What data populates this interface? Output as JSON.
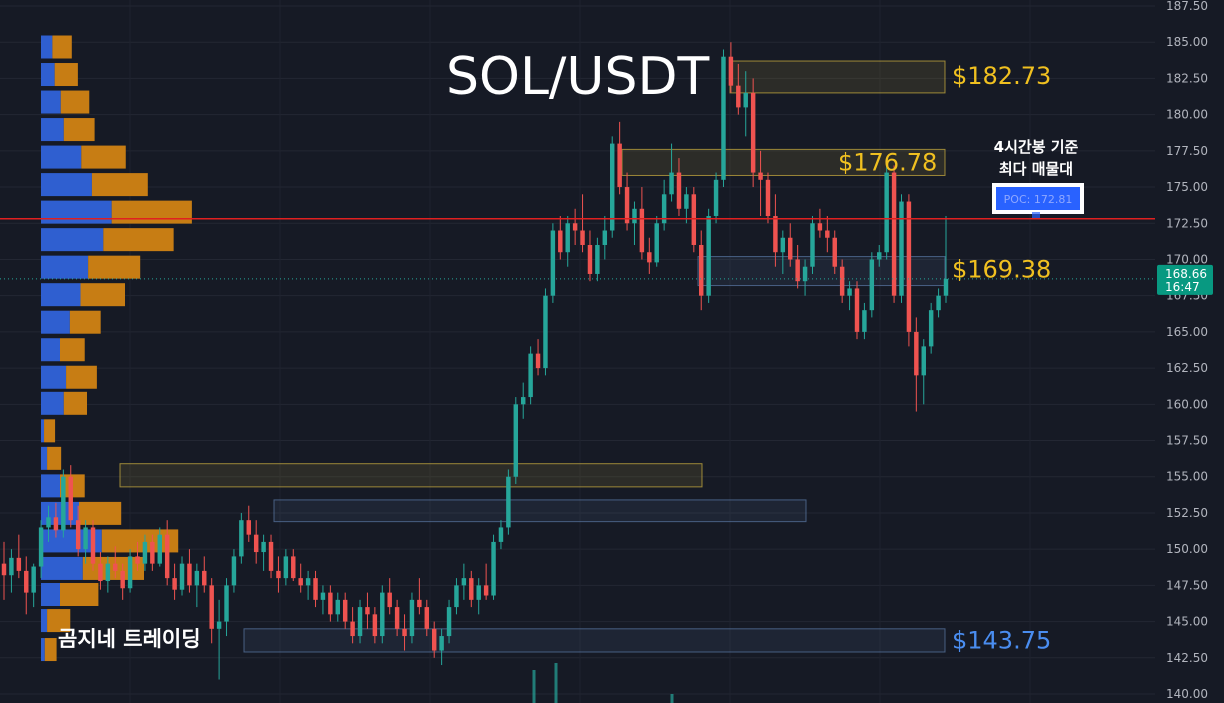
{
  "chart_data": {
    "type": "candlestick",
    "title": "SOL/USDT",
    "ylim": [
      140,
      187.5
    ],
    "y_ticks": [
      140,
      142.5,
      145,
      147.5,
      150,
      152.5,
      155,
      157.5,
      160,
      162.5,
      165,
      167.5,
      170,
      172.5,
      175,
      177.5,
      180,
      182.5,
      185,
      187.5
    ],
    "y_tick_labels": [
      "140.00",
      "142.50",
      "145.00",
      "147.50",
      "150.00",
      "152.50",
      "155.00",
      "157.50",
      "160.00",
      "162.50",
      "165.00",
      "167.50",
      "170.00",
      "172.50",
      "175.00",
      "177.50",
      "180.00",
      "182.50",
      "185.00",
      "187.50"
    ],
    "current_price": {
      "value": 168.66,
      "label": "168.66",
      "time": "16:47"
    },
    "poc": {
      "value": 172.81,
      "label": "POC: 172.81"
    },
    "price_levels": [
      {
        "value": 182.73,
        "label": "$182.73",
        "color": "#f0c020"
      },
      {
        "value": 176.78,
        "label": "$176.78",
        "color": "#f0c020"
      },
      {
        "value": 169.38,
        "label": "$169.38",
        "color": "#f0c020"
      },
      {
        "value": 143.75,
        "label": "$143.75",
        "color": "#4a8df0"
      }
    ],
    "annotation": [
      "4시간봉 기준",
      "최다 매물대"
    ],
    "brand": "곰지네 트레이딩",
    "volume_profile": [
      {
        "price": 143.0,
        "buy": 5,
        "sell": 5
      },
      {
        "price": 145.0,
        "buy": 8,
        "sell": 20
      },
      {
        "price": 146.8,
        "buy": 25,
        "sell": 40
      },
      {
        "price": 148.6,
        "buy": 55,
        "sell": 70
      },
      {
        "price": 150.5,
        "buy": 80,
        "sell": 90
      },
      {
        "price": 152.4,
        "buy": 50,
        "sell": 45
      },
      {
        "price": 154.3,
        "buy": 25,
        "sell": 22
      },
      {
        "price": 156.2,
        "buy": 8,
        "sell": 8
      },
      {
        "price": 158.1,
        "buy": 4,
        "sell": 4
      },
      {
        "price": 160.0,
        "buy": 30,
        "sell": 20
      },
      {
        "price": 161.8,
        "buy": 33,
        "sell": 30
      },
      {
        "price": 163.7,
        "buy": 25,
        "sell": 22
      },
      {
        "price": 165.6,
        "buy": 38,
        "sell": 30
      },
      {
        "price": 167.5,
        "buy": 52,
        "sell": 48
      },
      {
        "price": 169.4,
        "buy": 62,
        "sell": 58
      },
      {
        "price": 171.3,
        "buy": 82,
        "sell": 82
      },
      {
        "price": 173.2,
        "buy": 93,
        "sell": 95
      },
      {
        "price": 175.1,
        "buy": 67,
        "sell": 63
      },
      {
        "price": 177.0,
        "buy": 53,
        "sell": 48
      },
      {
        "price": 178.9,
        "buy": 30,
        "sell": 30
      },
      {
        "price": 180.8,
        "buy": 26,
        "sell": 27
      },
      {
        "price": 182.7,
        "buy": 18,
        "sell": 20
      },
      {
        "price": 184.6,
        "buy": 15,
        "sell": 15
      }
    ],
    "candles": [
      [
        149.0,
        150.5,
        146.5,
        148.2
      ],
      [
        148.2,
        150.0,
        147.0,
        149.4
      ],
      [
        149.4,
        151.0,
        148.0,
        148.5
      ],
      [
        148.5,
        149.5,
        145.5,
        147.0
      ],
      [
        147.0,
        149.0,
        146.0,
        148.8
      ],
      [
        148.8,
        152.0,
        148.0,
        151.5
      ],
      [
        151.5,
        153.0,
        150.5,
        152.2
      ],
      [
        152.2,
        153.2,
        150.8,
        151.3
      ],
      [
        151.3,
        155.5,
        150.8,
        155.0
      ],
      [
        155.0,
        155.8,
        151.5,
        152.0
      ],
      [
        152.0,
        153.0,
        149.5,
        150.0
      ],
      [
        150.0,
        152.0,
        149.0,
        151.5
      ],
      [
        151.5,
        152.0,
        148.5,
        149.0
      ],
      [
        149.0,
        149.8,
        147.2,
        147.8
      ],
      [
        147.8,
        149.5,
        147.0,
        149.0
      ],
      [
        149.0,
        150.2,
        148.0,
        148.5
      ],
      [
        148.5,
        149.0,
        146.5,
        147.3
      ],
      [
        147.3,
        150.0,
        147.0,
        149.5
      ],
      [
        149.5,
        150.5,
        148.5,
        149.0
      ],
      [
        149.0,
        151.0,
        148.5,
        150.5
      ],
      [
        150.5,
        151.0,
        148.5,
        149.0
      ],
      [
        149.0,
        151.5,
        148.8,
        151.0
      ],
      [
        151.0,
        152.0,
        147.5,
        148.0
      ],
      [
        148.0,
        149.0,
        146.5,
        147.2
      ],
      [
        147.2,
        149.5,
        146.8,
        149.0
      ],
      [
        149.0,
        150.0,
        147.0,
        147.5
      ],
      [
        147.5,
        149.0,
        146.0,
        148.5
      ],
      [
        148.5,
        149.5,
        147.0,
        147.5
      ],
      [
        147.5,
        148.0,
        143.5,
        144.5
      ],
      [
        144.5,
        146.5,
        141.0,
        145.0
      ],
      [
        145.0,
        148.0,
        144.0,
        147.5
      ],
      [
        147.5,
        150.0,
        147.0,
        149.5
      ],
      [
        149.5,
        152.5,
        149.0,
        152.0
      ],
      [
        152.0,
        153.0,
        150.5,
        151.0
      ],
      [
        151.0,
        152.0,
        149.0,
        149.8
      ],
      [
        149.8,
        151.0,
        148.5,
        150.5
      ],
      [
        150.5,
        151.0,
        148.0,
        148.5
      ],
      [
        148.5,
        149.5,
        147.0,
        148.0
      ],
      [
        148.0,
        150.0,
        147.5,
        149.5
      ],
      [
        149.5,
        150.0,
        147.8,
        148.0
      ],
      [
        148.0,
        149.0,
        147.0,
        147.5
      ],
      [
        147.5,
        148.5,
        146.5,
        148.0
      ],
      [
        148.0,
        148.5,
        146.0,
        146.5
      ],
      [
        146.5,
        147.5,
        145.5,
        147.0
      ],
      [
        147.0,
        147.5,
        145.0,
        145.5
      ],
      [
        145.5,
        147.0,
        145.0,
        146.5
      ],
      [
        146.5,
        147.0,
        144.5,
        145.0
      ],
      [
        145.0,
        146.0,
        143.5,
        144.0
      ],
      [
        144.0,
        146.5,
        143.5,
        146.0
      ],
      [
        146.0,
        147.0,
        144.5,
        145.5
      ],
      [
        145.5,
        146.0,
        143.5,
        144.0
      ],
      [
        144.0,
        147.5,
        143.5,
        147.0
      ],
      [
        147.0,
        148.0,
        145.5,
        146.0
      ],
      [
        146.0,
        146.5,
        144.0,
        144.5
      ],
      [
        144.5,
        145.5,
        143.0,
        144.0
      ],
      [
        144.0,
        147.0,
        143.5,
        146.5
      ],
      [
        146.5,
        148.0,
        145.5,
        146.0
      ],
      [
        146.0,
        146.5,
        144.0,
        144.5
      ],
      [
        144.5,
        145.0,
        142.5,
        143.0
      ],
      [
        143.0,
        144.5,
        142.0,
        144.0
      ],
      [
        144.0,
        146.5,
        143.5,
        146.0
      ],
      [
        146.0,
        148.0,
        145.5,
        147.5
      ],
      [
        147.5,
        149.0,
        146.5,
        148.0
      ],
      [
        148.0,
        148.5,
        146.0,
        146.5
      ],
      [
        146.5,
        148.0,
        145.5,
        147.5
      ],
      [
        147.5,
        149.0,
        146.5,
        146.8
      ],
      [
        146.8,
        151.0,
        146.5,
        150.5
      ],
      [
        150.5,
        152.0,
        150.0,
        151.5
      ],
      [
        151.5,
        155.5,
        151.0,
        155.0
      ],
      [
        155.0,
        160.5,
        154.5,
        160.0
      ],
      [
        160.0,
        161.5,
        159.0,
        160.5
      ],
      [
        160.5,
        164.0,
        160.0,
        163.5
      ],
      [
        163.5,
        164.5,
        162.0,
        162.5
      ],
      [
        162.5,
        168.0,
        162.0,
        167.5
      ],
      [
        167.5,
        172.5,
        167.0,
        172.0
      ],
      [
        172.0,
        173.0,
        170.0,
        170.5
      ],
      [
        170.5,
        173.0,
        169.5,
        172.5
      ],
      [
        172.5,
        173.5,
        171.0,
        172.0
      ],
      [
        172.0,
        174.5,
        170.5,
        171.0
      ],
      [
        171.0,
        172.0,
        168.5,
        169.0
      ],
      [
        169.0,
        171.5,
        168.5,
        171.0
      ],
      [
        171.0,
        173.0,
        170.0,
        172.0
      ],
      [
        172.0,
        178.5,
        171.5,
        178.0
      ],
      [
        178.0,
        179.5,
        174.5,
        175.0
      ],
      [
        175.0,
        176.0,
        172.0,
        172.5
      ],
      [
        172.5,
        174.0,
        171.0,
        173.5
      ],
      [
        173.5,
        175.0,
        170.0,
        170.5
      ],
      [
        170.5,
        171.5,
        169.0,
        169.8
      ],
      [
        169.8,
        173.0,
        169.5,
        172.5
      ],
      [
        172.5,
        175.5,
        172.0,
        174.5
      ],
      [
        174.5,
        178.0,
        174.0,
        176.0
      ],
      [
        176.0,
        177.0,
        173.0,
        173.5
      ],
      [
        173.5,
        175.0,
        172.5,
        174.5
      ],
      [
        174.5,
        175.0,
        170.5,
        171.0
      ],
      [
        171.0,
        172.0,
        166.5,
        167.5
      ],
      [
        167.5,
        173.5,
        167.0,
        173.0
      ],
      [
        173.0,
        176.0,
        172.5,
        175.5
      ],
      [
        175.5,
        184.5,
        175.0,
        184.0
      ],
      [
        184.0,
        185.0,
        181.5,
        182.0
      ],
      [
        182.0,
        183.5,
        180.0,
        180.5
      ],
      [
        180.5,
        183.0,
        178.5,
        181.5
      ],
      [
        181.5,
        182.5,
        175.0,
        176.0
      ],
      [
        176.0,
        177.5,
        173.0,
        175.5
      ],
      [
        175.5,
        176.0,
        172.5,
        173.0
      ],
      [
        173.0,
        174.5,
        169.5,
        170.5
      ],
      [
        170.5,
        172.0,
        169.0,
        171.5
      ],
      [
        171.5,
        172.5,
        169.5,
        170.0
      ],
      [
        170.0,
        171.0,
        168.0,
        168.5
      ],
      [
        168.5,
        170.0,
        167.5,
        169.5
      ],
      [
        169.5,
        173.0,
        169.0,
        172.5
      ],
      [
        172.5,
        173.5,
        171.5,
        172.0
      ],
      [
        172.0,
        173.0,
        170.5,
        171.5
      ],
      [
        171.5,
        172.0,
        169.0,
        169.5
      ],
      [
        169.5,
        170.0,
        167.0,
        167.5
      ],
      [
        167.5,
        168.5,
        166.5,
        168.0
      ],
      [
        168.0,
        168.5,
        164.5,
        165.0
      ],
      [
        165.0,
        167.0,
        164.5,
        166.5
      ],
      [
        166.5,
        170.5,
        166.0,
        170.0
      ],
      [
        170.0,
        171.0,
        169.5,
        170.5
      ],
      [
        170.5,
        176.5,
        170.0,
        176.0
      ],
      [
        176.0,
        176.5,
        167.0,
        167.5
      ],
      [
        167.5,
        174.5,
        167.0,
        174.0
      ],
      [
        174.0,
        174.5,
        164.0,
        165.0
      ],
      [
        165.0,
        166.0,
        159.5,
        162.0
      ],
      [
        162.0,
        164.5,
        160.0,
        164.0
      ],
      [
        164.0,
        167.0,
        163.5,
        166.5
      ],
      [
        166.5,
        168.0,
        166.0,
        167.5
      ],
      [
        167.5,
        173.0,
        167.0,
        168.66
      ]
    ]
  }
}
